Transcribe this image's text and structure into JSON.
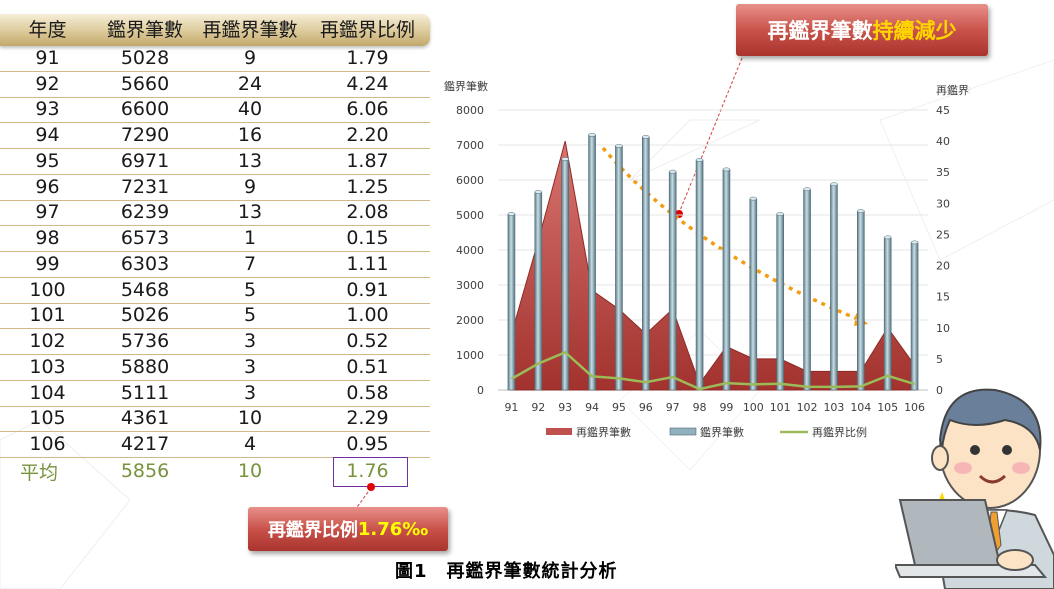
{
  "table": {
    "headers": [
      "年度",
      "鑑界筆數",
      "再鑑界筆數",
      "再鑑界比例"
    ],
    "rows": [
      [
        "91",
        "5028",
        "9",
        "1.79"
      ],
      [
        "92",
        "5660",
        "24",
        "4.24"
      ],
      [
        "93",
        "6600",
        "40",
        "6.06"
      ],
      [
        "94",
        "7290",
        "16",
        "2.20"
      ],
      [
        "95",
        "6971",
        "13",
        "1.87"
      ],
      [
        "96",
        "7231",
        "9",
        "1.25"
      ],
      [
        "97",
        "6239",
        "13",
        "2.08"
      ],
      [
        "98",
        "6573",
        "1",
        "0.15"
      ],
      [
        "99",
        "6303",
        "7",
        "1.11"
      ],
      [
        "100",
        "5468",
        "5",
        "0.91"
      ],
      [
        "101",
        "5026",
        "5",
        "1.00"
      ],
      [
        "102",
        "5736",
        "3",
        "0.52"
      ],
      [
        "103",
        "5880",
        "3",
        "0.51"
      ],
      [
        "104",
        "5111",
        "3",
        "0.58"
      ],
      [
        "105",
        "4361",
        "10",
        "2.29"
      ],
      [
        "106",
        "4217",
        "4",
        "0.95"
      ]
    ],
    "average": [
      "平均",
      "5856",
      "10",
      "1.76"
    ]
  },
  "callouts": {
    "top_prefix": "再鑑界筆數",
    "top_highlight": "持續減少",
    "bottom_prefix": "再鑑界比例",
    "bottom_highlight": "1.76‰"
  },
  "caption": "圖1　再鑑界筆數統計分析",
  "chart_data": {
    "type": "bar",
    "categories": [
      "91",
      "92",
      "93",
      "94",
      "95",
      "96",
      "97",
      "98",
      "99",
      "100",
      "101",
      "102",
      "103",
      "104",
      "105",
      "106"
    ],
    "series": [
      {
        "name": "再鑑界筆數",
        "type": "area",
        "axis": "right",
        "color": "#c0504d",
        "values": [
          9,
          24,
          40,
          16,
          13,
          9,
          13,
          1,
          7,
          5,
          5,
          3,
          3,
          3,
          10,
          4
        ]
      },
      {
        "name": "鑑界筆數",
        "type": "bar",
        "axis": "left",
        "color": "#8fb0bc",
        "values": [
          5028,
          5660,
          6600,
          7290,
          6971,
          7231,
          6239,
          6573,
          6303,
          5468,
          5026,
          5736,
          5880,
          5111,
          4361,
          4217
        ]
      },
      {
        "name": "再鑑界比例",
        "type": "line",
        "axis": "right",
        "color": "#9bbb59",
        "values": [
          1.79,
          4.24,
          6.06,
          2.2,
          1.87,
          1.25,
          2.08,
          0.15,
          1.11,
          0.91,
          1.0,
          0.52,
          0.51,
          0.58,
          2.29,
          0.95
        ]
      }
    ],
    "ylabel": "鑑界筆數",
    "ylabel_right": "再鑑界筆數",
    "ylim": [
      0,
      8000
    ],
    "y_ticks": [
      0,
      1000,
      2000,
      3000,
      4000,
      5000,
      6000,
      7000,
      8000
    ],
    "ylim_right": [
      0,
      45
    ],
    "y_ticks_right": [
      0,
      5,
      10,
      15,
      20,
      25,
      30,
      35,
      40,
      45
    ],
    "legend_position": "bottom",
    "grid": true
  }
}
